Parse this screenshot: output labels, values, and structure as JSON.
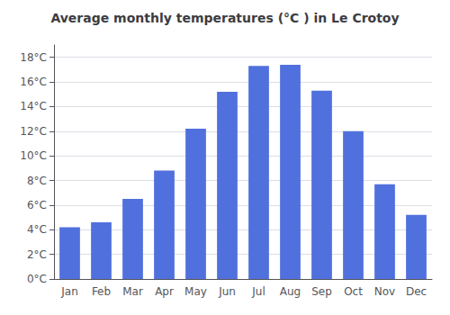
{
  "chart_data": {
    "type": "bar",
    "title": "Average monthly temperatures (°C ) in Le Crotoy",
    "categories": [
      "Jan",
      "Feb",
      "Mar",
      "Apr",
      "May",
      "Jun",
      "Jul",
      "Aug",
      "Sep",
      "Oct",
      "Nov",
      "Dec"
    ],
    "values": [
      4.2,
      4.6,
      6.5,
      8.8,
      12.2,
      15.2,
      17.3,
      17.4,
      15.3,
      12.0,
      7.7,
      5.2
    ],
    "ylim": [
      0,
      19
    ],
    "yticks": [
      {
        "value": 0,
        "label": "0°C"
      },
      {
        "value": 2,
        "label": "2°C"
      },
      {
        "value": 4,
        "label": "4°C"
      },
      {
        "value": 6,
        "label": "6°C"
      },
      {
        "value": 8,
        "label": "8°C"
      },
      {
        "value": 10,
        "label": "10°C"
      },
      {
        "value": 12,
        "label": "12°C"
      },
      {
        "value": 14,
        "label": "14°C"
      },
      {
        "value": 16,
        "label": "16°C"
      },
      {
        "value": 18,
        "label": "18°C"
      }
    ],
    "grid": true
  }
}
